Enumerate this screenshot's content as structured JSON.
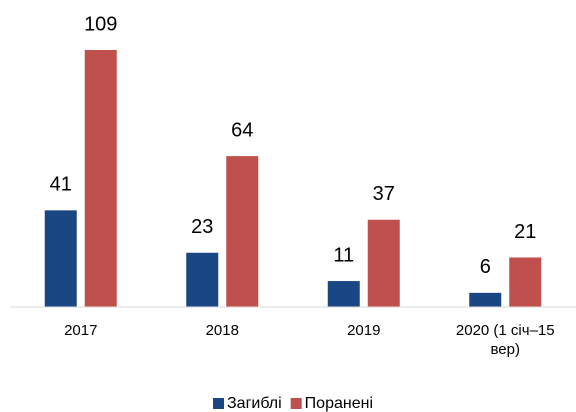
{
  "chart_data": {
    "type": "bar",
    "categories": [
      "2017",
      "2018",
      "2019",
      "2020 (1 січ–15 вер)"
    ],
    "series": [
      {
        "name": "Загиблі",
        "color": "#1a4684",
        "values": [
          41,
          23,
          11,
          6
        ]
      },
      {
        "name": "Поранені",
        "color": "#c0504d",
        "values": [
          109,
          64,
          37,
          21
        ]
      }
    ],
    "legend": "bottom"
  }
}
